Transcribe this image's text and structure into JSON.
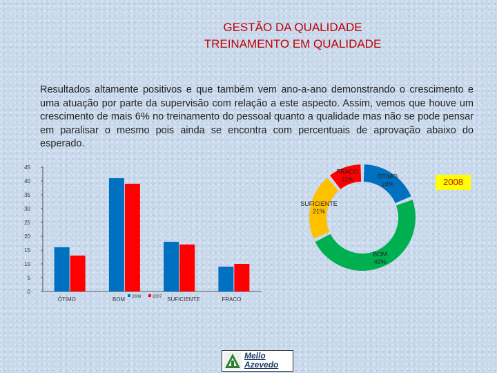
{
  "header": {
    "title_line1": "GESTÃO DA QUALIDADE",
    "title_line2": "TREINAMENTO EM QUALIDADE"
  },
  "intro_text": "Resultados altamente positivos e que também vem ano-a-ano demonstrando o crescimento e uma atuação por parte da supervisão com relação a este aspecto. Assim, vemos que houve um crescimento de mais 6% no treinamento do pessoal quanto a qualidade mas  não se pode pensar em paralisar o mesmo pois ainda se encontra com percentuais de aprovação abaixo do esperado.",
  "year_box": "2008",
  "logo": {
    "line1": "Mello",
    "line2": "Azevedo"
  },
  "colors": {
    "blue": "#0070c0",
    "red": "#ff0000",
    "orange": "#ffc000",
    "green": "#00b050",
    "title": "#c00000"
  },
  "chart_data": [
    {
      "type": "bar",
      "categories": [
        "ÓTIMO",
        "BOM",
        "SUFICIENTE",
        "FRACO"
      ],
      "series": [
        {
          "name": "2008",
          "values": [
            16,
            41,
            18,
            9
          ]
        },
        {
          "name": "2007",
          "values": [
            13,
            39,
            17,
            10
          ]
        }
      ],
      "ylim": [
        0,
        45
      ],
      "yticks": [
        0,
        5,
        10,
        15,
        20,
        25,
        30,
        35,
        40,
        45
      ],
      "legend": "inline-bottom"
    },
    {
      "type": "pie",
      "style": "donut",
      "slices": [
        {
          "label": "ÓTIMO",
          "value": 19,
          "text": "ÓTIMO\n19%"
        },
        {
          "label": "BOM",
          "value": 49,
          "text": "BOM\n49%"
        },
        {
          "label": "SUFICIENTE",
          "value": 21,
          "text": "SUFICIENTE\n21%"
        },
        {
          "label": "FRACO",
          "value": 11,
          "text": "FRACO\n11%"
        }
      ]
    }
  ]
}
